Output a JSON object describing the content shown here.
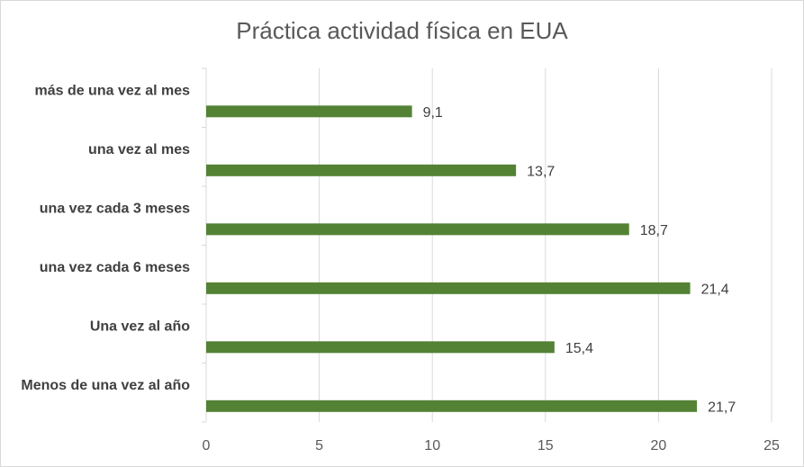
{
  "chart_data": {
    "type": "bar",
    "orientation": "horizontal",
    "title": "Práctica actividad física en EUA",
    "categories": [
      "Menos de una vez al año",
      "Una vez al año",
      "una vez cada 6 meses",
      "una vez cada 3 meses",
      "una vez al mes",
      "más de una vez al mes"
    ],
    "values": [
      21.7,
      15.4,
      21.4,
      18.7,
      13.7,
      9.1
    ],
    "value_labels": [
      "21,7",
      "15,4",
      "21,4",
      "18,7",
      "13,7",
      "9,1"
    ],
    "xlim": [
      0,
      25
    ],
    "xticks": [
      0,
      5,
      10,
      15,
      20,
      25
    ],
    "xtick_labels": [
      "0",
      "5",
      "10",
      "15",
      "20",
      "25"
    ],
    "grid": true,
    "legend": "none",
    "bar_color": "#548235",
    "grid_color": "#d9d9d9"
  }
}
